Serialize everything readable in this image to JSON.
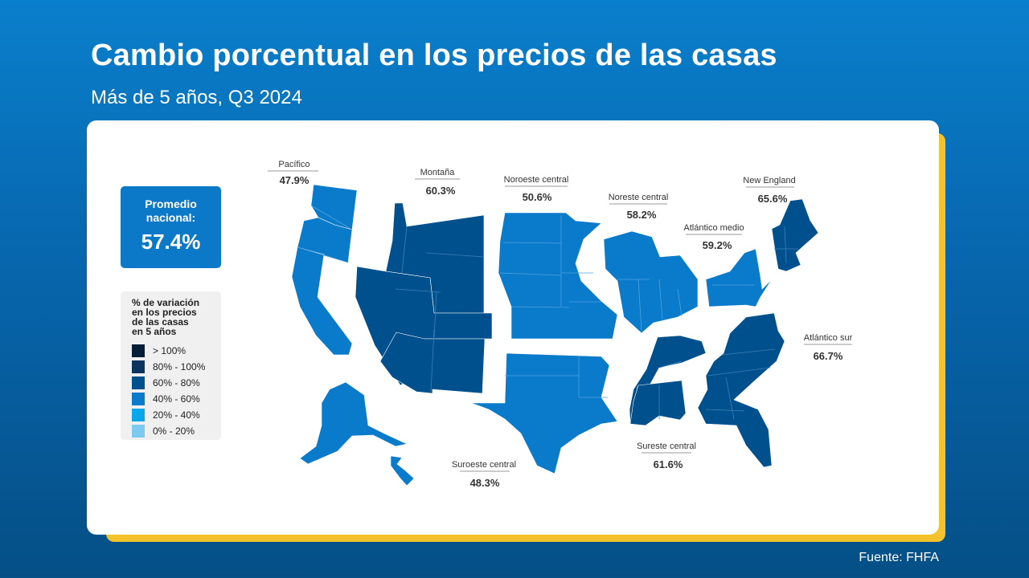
{
  "header": {
    "title": "Cambio porcentual en los precios de las casas",
    "subtitle": "Más de 5 años, Q3 2024"
  },
  "national": {
    "label": "Promedio\nnacional:",
    "value": "57.4%"
  },
  "legend": {
    "title": "% de variación\nen los precios\nde las casas\nen 5 años",
    "items": [
      {
        "label": "> 100%",
        "color": "#061e38"
      },
      {
        "label": "80% - 100%",
        "color": "#0b3560"
      },
      {
        "label": "60% - 80%",
        "color": "#00508d"
      },
      {
        "label": "40% - 60%",
        "color": "#0a7acb"
      },
      {
        "label": "20% - 40%",
        "color": "#08a6eb"
      },
      {
        "label": "0% - 20%",
        "color": "#7cc9f2"
      }
    ]
  },
  "regions": [
    {
      "name": "Pacífico",
      "value": "47.9%",
      "color": "#0a7acb"
    },
    {
      "name": "Montaña",
      "value": "60.3%",
      "color": "#00508d"
    },
    {
      "name": "Noroeste central",
      "value": "50.6%",
      "color": "#0a7acb"
    },
    {
      "name": "Noreste central",
      "value": "58.2%",
      "color": "#0a7acb"
    },
    {
      "name": "Atlántico medio",
      "value": "59.2%",
      "color": "#0a7acb"
    },
    {
      "name": "New England",
      "value": "65.6%",
      "color": "#00508d"
    },
    {
      "name": "Atlántico sur",
      "value": "66.7%",
      "color": "#00508d"
    },
    {
      "name": "Sureste central",
      "value": "61.6%",
      "color": "#00508d"
    },
    {
      "name": "Suroeste central",
      "value": "48.3%",
      "color": "#0a7acb"
    }
  ],
  "source": "Fuente: FHFA"
}
